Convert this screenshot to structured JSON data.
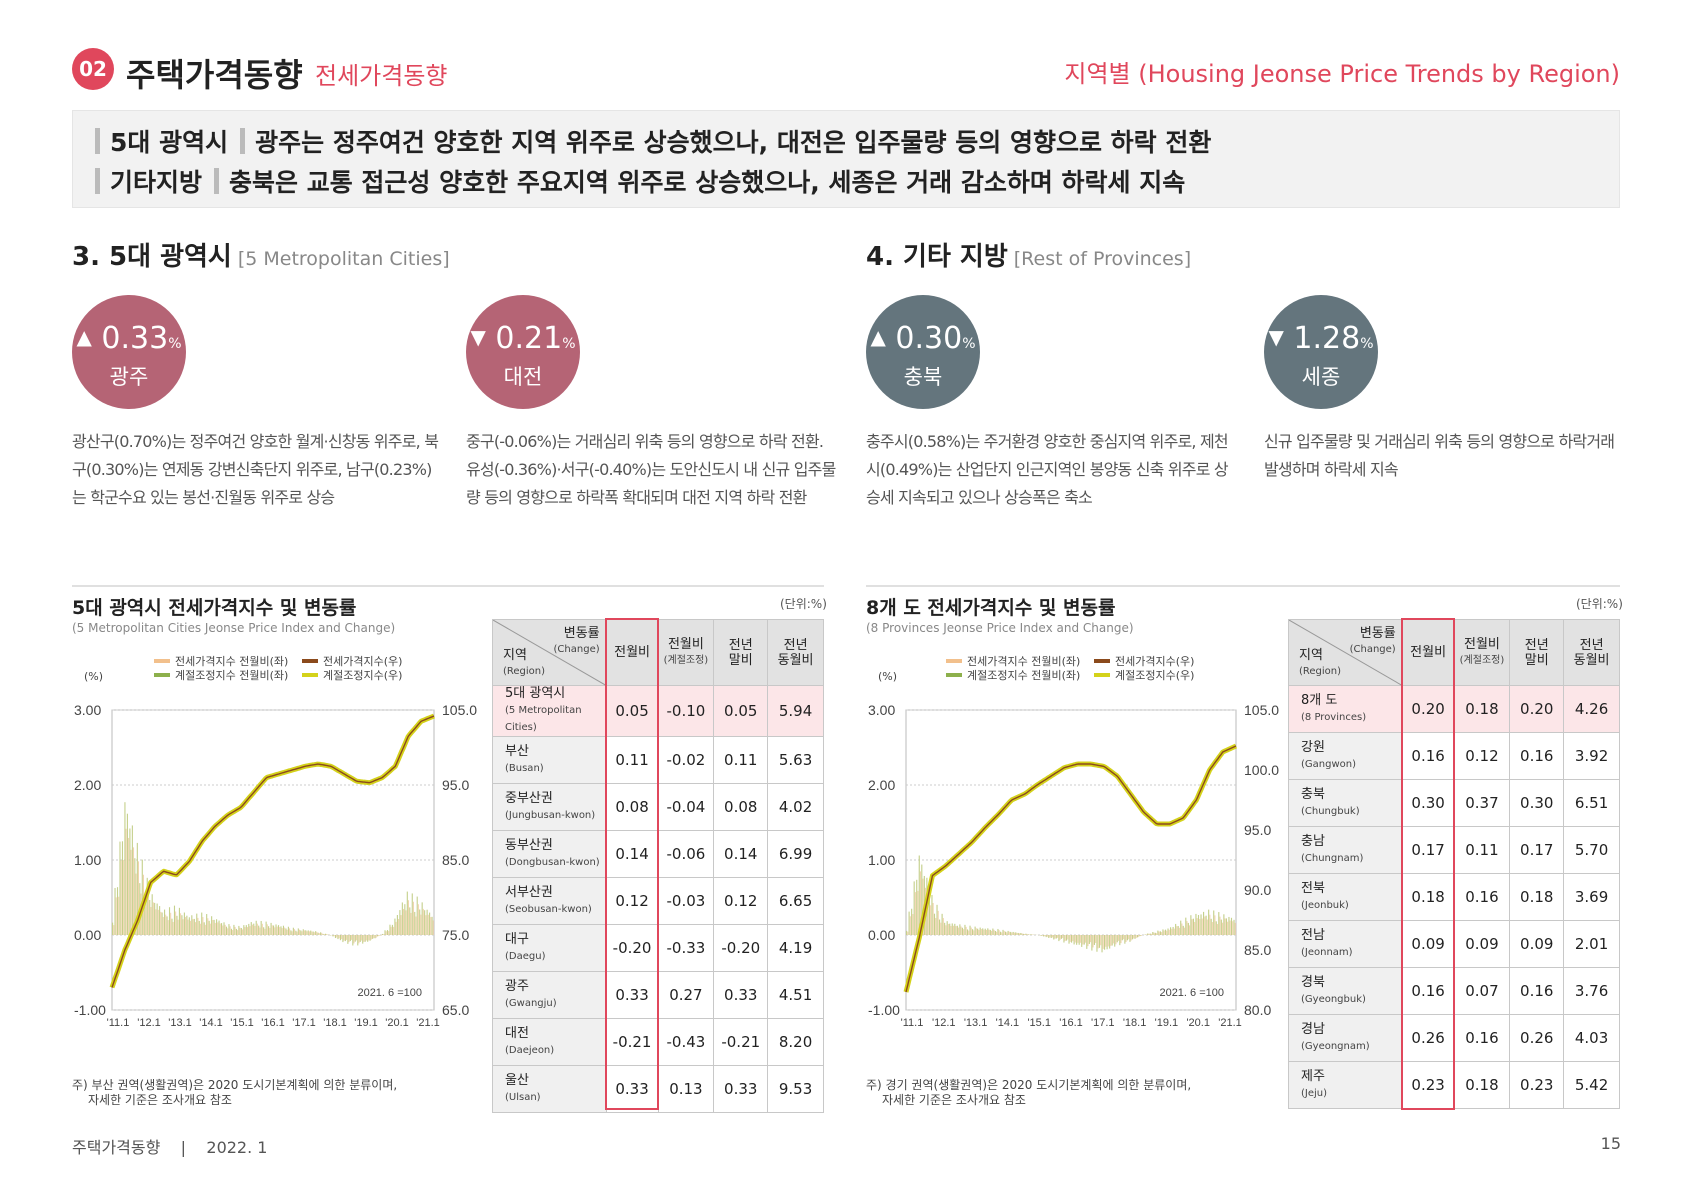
{
  "header": {
    "badge": "02",
    "title": "주택가격동향",
    "subtitle": "전세가격동향",
    "right_title": "지역별 (Housing Jeonse Price Trends by Region)"
  },
  "summary": [
    {
      "label": "5대 광역시",
      "text": "광주는 정주여건 양호한 지역 위주로 상승했으나, 대전은 입주물량 등의 영향으로 하락 전환"
    },
    {
      "label": "기타지방",
      "text": "충북은 교통 접근성 양호한 주요지역 위주로 상승했으나, 세종은 거래 감소하며 하락세 지속"
    }
  ],
  "sections": {
    "metro": {
      "title": "3. 5대 광역시",
      "title_en": "[5 Metropolitan Cities]"
    },
    "provinces": {
      "title": "4. 기타 지방",
      "title_en": "[Rest of Provinces]"
    }
  },
  "highlights": [
    {
      "arrow": "▲",
      "value": "0.33",
      "unit": "%",
      "name": "광주",
      "color": "#b56475",
      "desc": "광산구(0.70%)는 정주여건 양호한 월계·신창동 위주로, 북구(0.30%)는 연제동 강변신축단지 위주로, 남구(0.23%)는 학군수요 있는 봉선·진월동 위주로 상승"
    },
    {
      "arrow": "▼",
      "value": "0.21",
      "unit": "%",
      "name": "대전",
      "color": "#b56475",
      "desc": "중구(-0.06%)는 거래심리 위축 등의 영향으로 하락 전환. 유성(-0.36%)·서구(-0.40%)는 도안신도시 내 신규 입주물량 등의 영향으로 하락폭 확대되며 대전 지역 하락 전환"
    },
    {
      "arrow": "▲",
      "value": "0.30",
      "unit": "%",
      "name": "충북",
      "color": "#64757d",
      "desc": "충주시(0.58%)는 주거환경 양호한 중심지역 위주로, 제천시(0.49%)는 산업단지 인근지역인 봉양동 신축 위주로 상승세 지속되고 있으나 상승폭은 축소"
    },
    {
      "arrow": "▼",
      "value": "1.28",
      "unit": "%",
      "name": "세종",
      "color": "#64757d",
      "desc": "신규 입주물량 및 거래심리 위축 등의 영향으로 하락거래 발생하며 하락세 지속"
    }
  ],
  "charts": [
    {
      "title": "5대 광역시 전세가격지수 및 변동률",
      "subtitle": "(5 Metropolitan Cities Jeonse Price Index and Change)",
      "unit": "(단위:%)",
      "pct_label": "(%)",
      "note": "주) 부산 권역(생활권역)은 2020 도시기본계획에 의한 분류이며,",
      "note2": "자세한 기준은 조사개요 참조",
      "base_label": "2021. 6 =100"
    },
    {
      "title": "8개 도 전세가격지수 및 변동률",
      "subtitle": "(8 Provinces Jeonse Price Index and Change)",
      "unit": "(단위:%)",
      "pct_label": "(%)",
      "note": "주) 경기 권역(생활권역)은 2020 도시기본계획에 의한 분류이며,",
      "note2": "자세한 기준은 조사개요 참조",
      "base_label": "2021. 6 =100"
    }
  ],
  "legend": [
    {
      "label": "전세가격지수 전월비(좌)",
      "color": "#f2c08c"
    },
    {
      "label": "전세가격지수(우)",
      "color": "#8b4a1c"
    },
    {
      "label": "계절조정지수 전월비(좌)",
      "color": "#8db04c"
    },
    {
      "label": "계절조정지수(우)",
      "color": "#d4d21a"
    }
  ],
  "chart_data": [
    {
      "type": "line",
      "name": "metro",
      "x_ticks": [
        "'11.1",
        "'12.1",
        "'13.1",
        "'14.1",
        "'15.1",
        "'16.1",
        "'17.1",
        "'18.1",
        "'19.1",
        "'20.1",
        "'21.1"
      ],
      "y_left": {
        "ticks": [
          "3.00",
          "2.00",
          "1.00",
          "0.00",
          "-1.00"
        ],
        "range": [
          -1,
          3
        ]
      },
      "y_right": {
        "ticks": [
          "105.0",
          "95.0",
          "85.0",
          "75.0",
          "65.0"
        ],
        "range": [
          65,
          105
        ]
      },
      "index_series": [
        68,
        73,
        77,
        82,
        83.5,
        83,
        84.8,
        87.5,
        89.5,
        91,
        92,
        94,
        96,
        96.5,
        97,
        97.5,
        97.8,
        97.5,
        96.5,
        95.5,
        95.3,
        96,
        97.5,
        101.5,
        103.5,
        104.2
      ],
      "change_series": [
        0.3,
        2.0,
        1.2,
        0.6,
        0.35,
        0.4,
        0.28,
        0.3,
        0.25,
        0.15,
        0.12,
        0.2,
        0.18,
        0.15,
        0.1,
        0.08,
        0.05,
        0.0,
        -0.1,
        -0.15,
        -0.1,
        0.0,
        0.2,
        0.6,
        0.5,
        0.3
      ]
    },
    {
      "type": "line",
      "name": "provinces",
      "x_ticks": [
        "'11.1",
        "'12.1",
        "'13.1",
        "'14.1",
        "'15.1",
        "'16.1",
        "'17.1",
        "'18.1",
        "'19.1",
        "'20.1",
        "'21.1"
      ],
      "y_left": {
        "ticks": [
          "3.00",
          "2.00",
          "1.00",
          "0.00",
          "-1.00"
        ],
        "range": [
          -1,
          3
        ]
      },
      "y_right": {
        "ticks": [
          "105.0",
          "100.0",
          "95.0",
          "90.0",
          "85.0",
          "80.0"
        ],
        "range": [
          80,
          105
        ]
      },
      "index_series": [
        81.5,
        86,
        91.2,
        92,
        93,
        94,
        95.2,
        96.3,
        97.5,
        98,
        98.8,
        99.5,
        100.2,
        100.5,
        100.5,
        100.3,
        99.5,
        98,
        96.5,
        95.5,
        95.5,
        96,
        97.5,
        100,
        101.5,
        102
      ],
      "change_series": [
        0.1,
        1.2,
        0.5,
        0.2,
        0.15,
        0.12,
        0.1,
        0.08,
        0.05,
        0.02,
        0.0,
        -0.05,
        -0.1,
        -0.15,
        -0.2,
        -0.25,
        -0.15,
        -0.1,
        0.0,
        0.05,
        0.1,
        0.2,
        0.3,
        0.35,
        0.3,
        0.25
      ]
    }
  ],
  "tables": [
    {
      "header": {
        "change": "변동률",
        "change_en": "(Change)",
        "region": "지역",
        "region_en": "(Region)",
        "cols": [
          {
            "ko": "전월비",
            "en": ""
          },
          {
            "ko": "전월비",
            "en": "(계절조정)"
          },
          {
            "ko": "전년",
            "en": "말비"
          },
          {
            "ko": "전년",
            "en": "동월비"
          }
        ]
      },
      "rows": [
        {
          "ko": "5대 광역시",
          "en": "(5 Metropolitan Cities)",
          "v": [
            "0.05",
            "-0.10",
            "0.05",
            "5.94"
          ]
        },
        {
          "ko": "부산",
          "en": "(Busan)",
          "v": [
            "0.11",
            "-0.02",
            "0.11",
            "5.63"
          ]
        },
        {
          "ko": "중부산권",
          "en": "(Jungbusan-kwon)",
          "v": [
            "0.08",
            "-0.04",
            "0.08",
            "4.02"
          ]
        },
        {
          "ko": "동부산권",
          "en": "(Dongbusan-kwon)",
          "v": [
            "0.14",
            "-0.06",
            "0.14",
            "6.99"
          ]
        },
        {
          "ko": "서부산권",
          "en": "(Seobusan-kwon)",
          "v": [
            "0.12",
            "-0.03",
            "0.12",
            "6.65"
          ]
        },
        {
          "ko": "대구",
          "en": "(Daegu)",
          "v": [
            "-0.20",
            "-0.33",
            "-0.20",
            "4.19"
          ]
        },
        {
          "ko": "광주",
          "en": "(Gwangju)",
          "v": [
            "0.33",
            "0.27",
            "0.33",
            "4.51"
          ]
        },
        {
          "ko": "대전",
          "en": "(Daejeon)",
          "v": [
            "-0.21",
            "-0.43",
            "-0.21",
            "8.20"
          ]
        },
        {
          "ko": "울산",
          "en": "(Ulsan)",
          "v": [
            "0.33",
            "0.13",
            "0.33",
            "9.53"
          ]
        }
      ]
    },
    {
      "header": {
        "change": "변동률",
        "change_en": "(Change)",
        "region": "지역",
        "region_en": "(Region)",
        "cols": [
          {
            "ko": "전월비",
            "en": ""
          },
          {
            "ko": "전월비",
            "en": "(계절조정)"
          },
          {
            "ko": "전년",
            "en": "말비"
          },
          {
            "ko": "전년",
            "en": "동월비"
          }
        ]
      },
      "rows": [
        {
          "ko": "8개 도",
          "en": "(8 Provinces)",
          "v": [
            "0.20",
            "0.18",
            "0.20",
            "4.26"
          ]
        },
        {
          "ko": "강원",
          "en": "(Gangwon)",
          "v": [
            "0.16",
            "0.12",
            "0.16",
            "3.92"
          ]
        },
        {
          "ko": "충북",
          "en": "(Chungbuk)",
          "v": [
            "0.30",
            "0.37",
            "0.30",
            "6.51"
          ]
        },
        {
          "ko": "충남",
          "en": "(Chungnam)",
          "v": [
            "0.17",
            "0.11",
            "0.17",
            "5.70"
          ]
        },
        {
          "ko": "전북",
          "en": "(Jeonbuk)",
          "v": [
            "0.18",
            "0.16",
            "0.18",
            "3.69"
          ]
        },
        {
          "ko": "전남",
          "en": "(Jeonnam)",
          "v": [
            "0.09",
            "0.09",
            "0.09",
            "2.01"
          ]
        },
        {
          "ko": "경북",
          "en": "(Gyeongbuk)",
          "v": [
            "0.16",
            "0.07",
            "0.16",
            "3.76"
          ]
        },
        {
          "ko": "경남",
          "en": "(Gyeongnam)",
          "v": [
            "0.26",
            "0.16",
            "0.26",
            "4.03"
          ]
        },
        {
          "ko": "제주",
          "en": "(Jeju)",
          "v": [
            "0.23",
            "0.18",
            "0.23",
            "5.42"
          ]
        }
      ]
    }
  ],
  "footer": {
    "left": "주택가격동향    |    2022. 1",
    "page": "15"
  }
}
